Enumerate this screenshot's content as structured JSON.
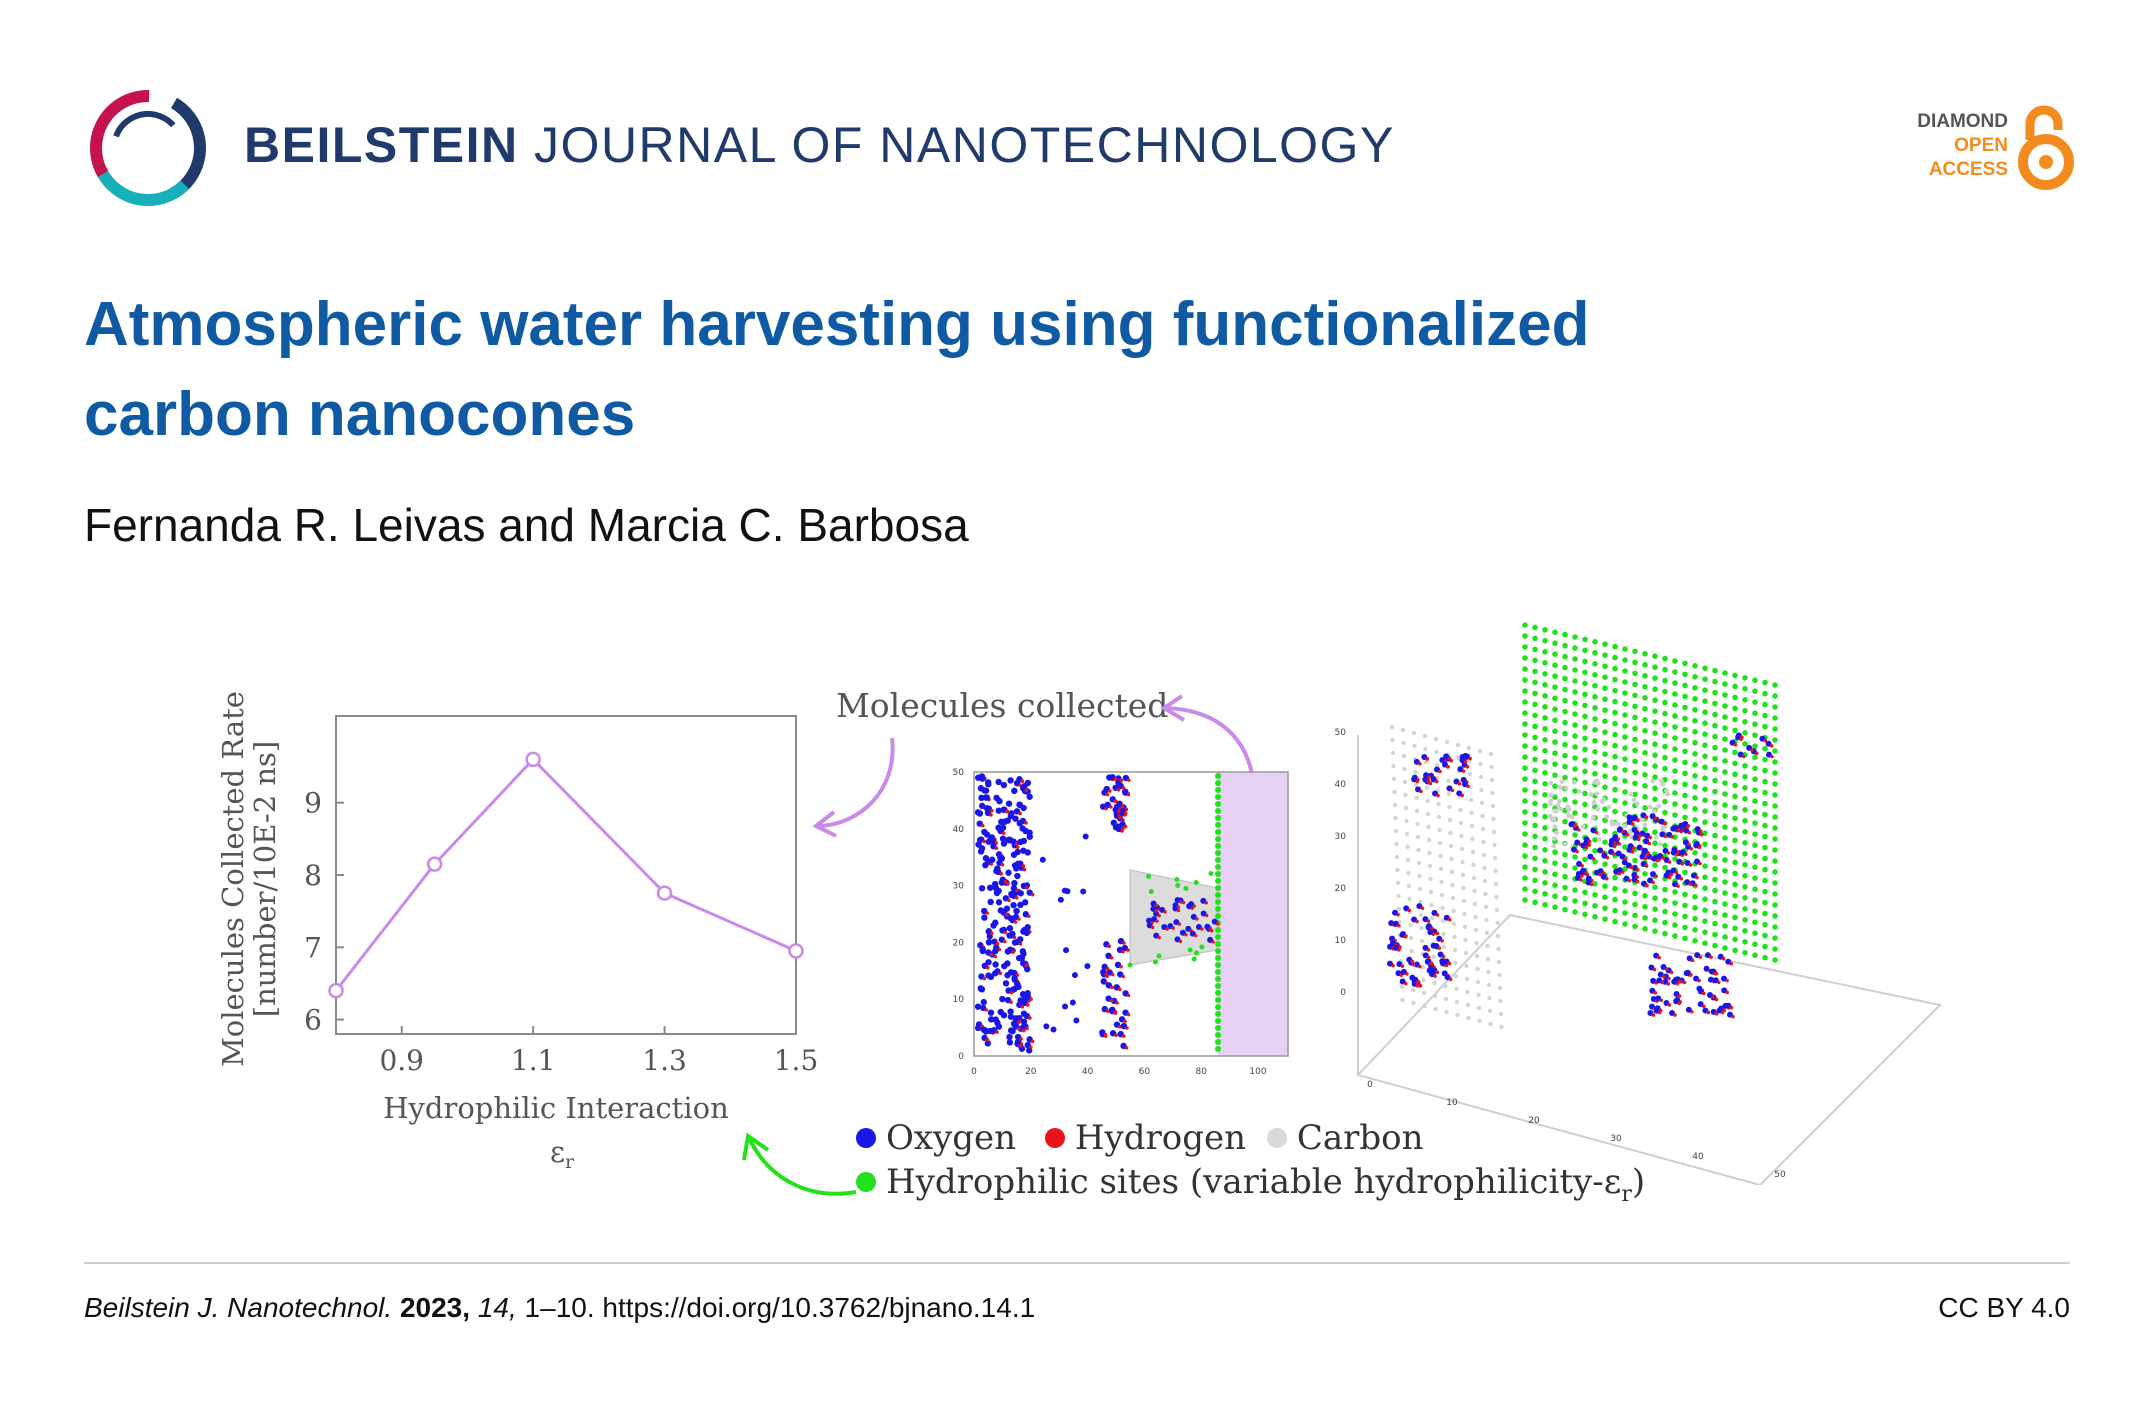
{
  "header": {
    "journal_bold": "BEILSTEIN",
    "journal_rest": "JOURNAL OF NANOTECHNOLOGY",
    "logo_icon": "beilstein-ring-logo",
    "badge": {
      "line1": "DIAMOND",
      "line2": "OPEN",
      "line3": "ACCESS",
      "icon": "open-lock-icon",
      "colors": {
        "dark": "#555555",
        "orange": "#f28c1e"
      }
    }
  },
  "article": {
    "title_line1": "Atmospheric water harvesting using functionalized",
    "title_line2": "carbon nanocones",
    "authors": "Fernanda R. Leivas and Marcia C. Barbosa"
  },
  "graphical_abstract": {
    "molecules_collected_label": "Molecules collected",
    "legend": {
      "oxygen": "Oxygen",
      "hydrogen": "Hydrogen",
      "carbon": "Carbon",
      "hydrophilic": "Hydrophilic sites (variable hydrophilicity-ε",
      "hydrophilic_sub": "r",
      "hydrophilic_close": ")"
    },
    "colors": {
      "oxygen": "#1a17e6",
      "hydrogen": "#e8141b",
      "carbon": "#d9d9d9",
      "hydrophilic": "#22e01c",
      "line": "#c98ae8",
      "membrane": "#e6d0f3"
    },
    "snapshot_x_ticks": [
      "0",
      "20",
      "40",
      "60",
      "80",
      "100"
    ],
    "snapshot_y_ticks": [
      "0",
      "10",
      "20",
      "30",
      "40",
      "50"
    ],
    "view3d_z_ticks": [
      "0",
      "10",
      "20",
      "30",
      "40",
      "50"
    ],
    "view3d_floor_ticks": [
      "0",
      "10",
      "20",
      "30",
      "40",
      "50"
    ]
  },
  "chart_data": {
    "type": "line",
    "x": [
      0.8,
      0.95,
      1.1,
      1.3,
      1.5
    ],
    "series": [
      {
        "values": [
          6.4,
          8.15,
          9.6,
          7.75,
          6.95
        ]
      }
    ],
    "xlabel": "Hydrophilic Interaction",
    "xlabel_symbol": "ε",
    "xlabel_sub": "r",
    "ylabel_line1": "Molecules Collected Rate",
    "ylabel_line2": "[number/10E-2 ns]",
    "x_ticks": [
      "0.9",
      "1.1",
      "1.3",
      "1.5"
    ],
    "y_ticks": [
      "6",
      "7",
      "8",
      "9"
    ],
    "xlim": [
      0.8,
      1.5
    ],
    "ylim": [
      5.8,
      10.2
    ],
    "grid": false,
    "marker": "circle"
  },
  "footer": {
    "journal_abbr": "Beilstein J. Nanotechnol.",
    "year": "2023,",
    "volume": "14,",
    "pages_doi": "1–10. https://doi.org/10.3762/bjnano.14.1",
    "license": "CC BY 4.0"
  }
}
